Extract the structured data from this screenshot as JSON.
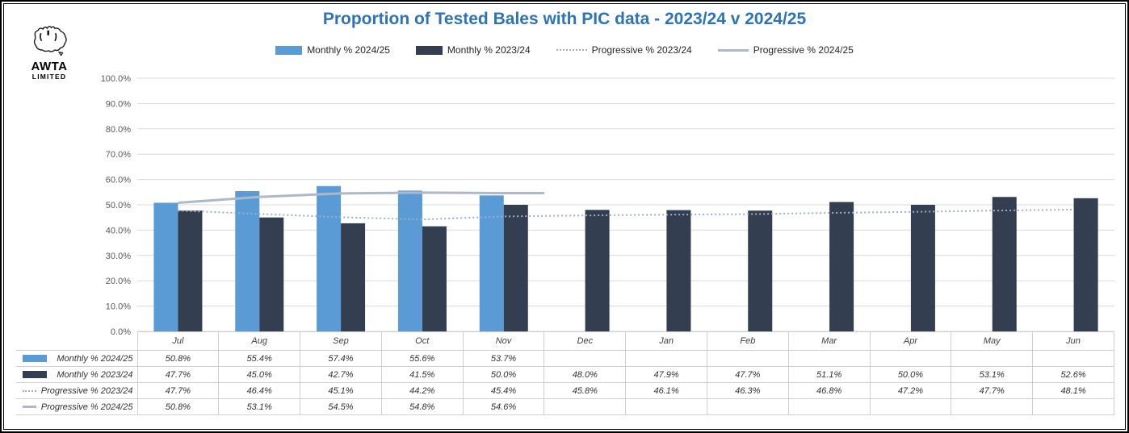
{
  "header": {
    "title": "Proportion of Tested Bales with PIC data - 2023/24 v 2024/25"
  },
  "logo": {
    "line1": "AWTA",
    "line2": "LIMITED"
  },
  "colors": {
    "title_text": "#2E74B5",
    "bar_2024_25": "#5B9BD5",
    "bar_2023_24": "#333F50",
    "line_progressive_2023_24": "#9BAFD0",
    "line_progressive_2024_25": "#ADB9CA",
    "gridline": "#D9D9D9",
    "axis_text": "#595959",
    "table_border": "#CFCFCF"
  },
  "chart_data": {
    "type": "bar",
    "title": "Proportion of Tested Bales with PIC data - 2023/24 v 2024/25",
    "categories": [
      "Jul",
      "Aug",
      "Sep",
      "Oct",
      "Nov",
      "Dec",
      "Jan",
      "Feb",
      "Mar",
      "Apr",
      "May",
      "Jun"
    ],
    "y_ticks": [
      "0.0%",
      "10.0%",
      "20.0%",
      "30.0%",
      "40.0%",
      "50.0%",
      "60.0%",
      "70.0%",
      "80.0%",
      "90.0%",
      "100.0%"
    ],
    "ylim": [
      0,
      100
    ],
    "grid": true,
    "legend_position": "top",
    "data_table_shown": true,
    "series": [
      {
        "name": "Monthly % 2024/25",
        "type": "bar",
        "color": "#5B9BD5",
        "values": [
          50.8,
          55.4,
          57.4,
          55.6,
          53.7,
          null,
          null,
          null,
          null,
          null,
          null,
          null
        ]
      },
      {
        "name": "Monthly % 2023/24",
        "type": "bar",
        "color": "#333F50",
        "values": [
          47.7,
          45.0,
          42.7,
          41.5,
          50.0,
          48.0,
          47.9,
          47.7,
          51.1,
          50.0,
          53.1,
          52.6
        ]
      },
      {
        "name": "Progressive % 2023/24",
        "type": "line",
        "style": "dotted",
        "color": "#9BAFD0",
        "values": [
          47.7,
          46.4,
          45.1,
          44.2,
          45.4,
          45.8,
          46.1,
          46.3,
          46.8,
          47.2,
          47.7,
          48.1
        ]
      },
      {
        "name": "Progressive % 2024/25",
        "type": "line",
        "style": "solid",
        "color": "#ADB9CA",
        "extend_to_slot_end": true,
        "values": [
          50.8,
          53.1,
          54.5,
          54.8,
          54.6,
          null,
          null,
          null,
          null,
          null,
          null,
          null
        ]
      }
    ]
  }
}
